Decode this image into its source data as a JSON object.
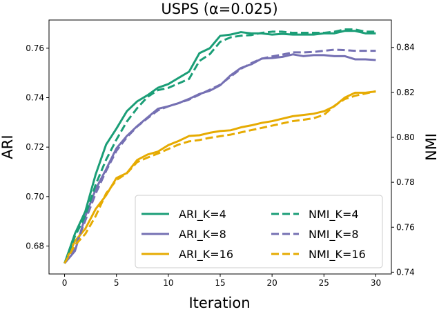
{
  "chart_data": {
    "type": "line",
    "title": "USPS (α=0.025)",
    "xlabel": "Iteration",
    "ylabel_left": "ARI",
    "ylabel_right": "NMI",
    "xlim": [
      -1.5,
      31.5
    ],
    "ylim_left": [
      0.6687,
      0.7714
    ],
    "ylim_right": [
      0.7392,
      0.8522
    ],
    "xticks": [
      0,
      5,
      10,
      15,
      20,
      25,
      30
    ],
    "yticks_left": [
      0.68,
      0.7,
      0.72,
      0.74,
      0.76
    ],
    "yticks_right": [
      0.74,
      0.76,
      0.78,
      0.8,
      0.82,
      0.84
    ],
    "ytick_labels_left": [
      "0.68",
      "0.70",
      "0.72",
      "0.74",
      "0.76"
    ],
    "ytick_labels_right": [
      "0.74",
      "0.76",
      "0.78",
      "0.80",
      "0.82",
      "0.84"
    ],
    "legend_location": "lower-right",
    "legend_columns": 2,
    "x": [
      0,
      1,
      2,
      3,
      4,
      5,
      6,
      7,
      8,
      9,
      10,
      11,
      12,
      13,
      14,
      15,
      16,
      17,
      18,
      19,
      20,
      21,
      22,
      23,
      24,
      25,
      26,
      27,
      28,
      29,
      30
    ],
    "series": [
      {
        "name": "ARI_K=4",
        "axis": "left",
        "style": "solid",
        "color": "#1b9e77",
        "values": [
          0.673,
          0.685,
          0.694,
          0.709,
          0.721,
          0.7275,
          0.7345,
          0.7385,
          0.741,
          0.744,
          0.7455,
          0.748,
          0.7505,
          0.758,
          0.76,
          0.765,
          0.7655,
          0.7665,
          0.766,
          0.766,
          0.7655,
          0.7658,
          0.7655,
          0.7655,
          0.7655,
          0.766,
          0.766,
          0.767,
          0.767,
          0.766,
          0.766
        ]
      },
      {
        "name": "ARI_K=8",
        "axis": "left",
        "style": "solid",
        "color": "#7570b3",
        "values": [
          0.673,
          0.678,
          0.692,
          0.703,
          0.711,
          0.7195,
          0.7245,
          0.7285,
          0.732,
          0.7355,
          0.7365,
          0.7378,
          0.7395,
          0.7415,
          0.7428,
          0.745,
          0.749,
          0.752,
          0.7535,
          0.7558,
          0.756,
          0.7565,
          0.7575,
          0.7568,
          0.7572,
          0.7572,
          0.7568,
          0.7568,
          0.7555,
          0.7555,
          0.7552
        ]
      },
      {
        "name": "ARI_K=16",
        "axis": "left",
        "style": "solid",
        "color": "#e6ab02",
        "values": [
          0.673,
          0.682,
          0.687,
          0.695,
          0.7005,
          0.7075,
          0.7095,
          0.7148,
          0.717,
          0.7182,
          0.7208,
          0.7225,
          0.7245,
          0.7248,
          0.7258,
          0.7265,
          0.7268,
          0.728,
          0.7288,
          0.7298,
          0.7305,
          0.7315,
          0.7325,
          0.733,
          0.7335,
          0.7345,
          0.7365,
          0.74,
          0.742,
          0.742,
          0.7425
        ]
      },
      {
        "name": "NMI_K=4",
        "axis": "right",
        "style": "dashed",
        "color": "#1b9e77",
        "values": [
          0.744,
          0.756,
          0.765,
          0.779,
          0.79,
          0.799,
          0.807,
          0.813,
          0.818,
          0.821,
          0.822,
          0.824,
          0.826,
          0.834,
          0.837,
          0.8425,
          0.8445,
          0.8452,
          0.8455,
          0.8465,
          0.847,
          0.847,
          0.8465,
          0.8465,
          0.8465,
          0.8465,
          0.847,
          0.848,
          0.848,
          0.847,
          0.847
        ]
      },
      {
        "name": "NMI_K=8",
        "axis": "right",
        "style": "dashed",
        "color": "#7570b3",
        "values": [
          0.744,
          0.751,
          0.763,
          0.775,
          0.785,
          0.794,
          0.8,
          0.8048,
          0.8085,
          0.812,
          0.8138,
          0.8152,
          0.8168,
          0.819,
          0.8212,
          0.8234,
          0.827,
          0.8305,
          0.833,
          0.835,
          0.836,
          0.8368,
          0.8378,
          0.8378,
          0.838,
          0.8385,
          0.839,
          0.8388,
          0.8385,
          0.8385,
          0.8385
        ]
      },
      {
        "name": "NMI_K=16",
        "axis": "right",
        "style": "dashed",
        "color": "#e6ab02",
        "values": [
          0.744,
          0.752,
          0.757,
          0.765,
          0.775,
          0.781,
          0.784,
          0.789,
          0.791,
          0.7928,
          0.7948,
          0.7968,
          0.7982,
          0.7988,
          0.7998,
          0.8005,
          0.8012,
          0.8022,
          0.8032,
          0.8042,
          0.8052,
          0.8062,
          0.8072,
          0.8078,
          0.8085,
          0.81,
          0.814,
          0.817,
          0.8185,
          0.8195,
          0.8205
        ]
      }
    ]
  }
}
